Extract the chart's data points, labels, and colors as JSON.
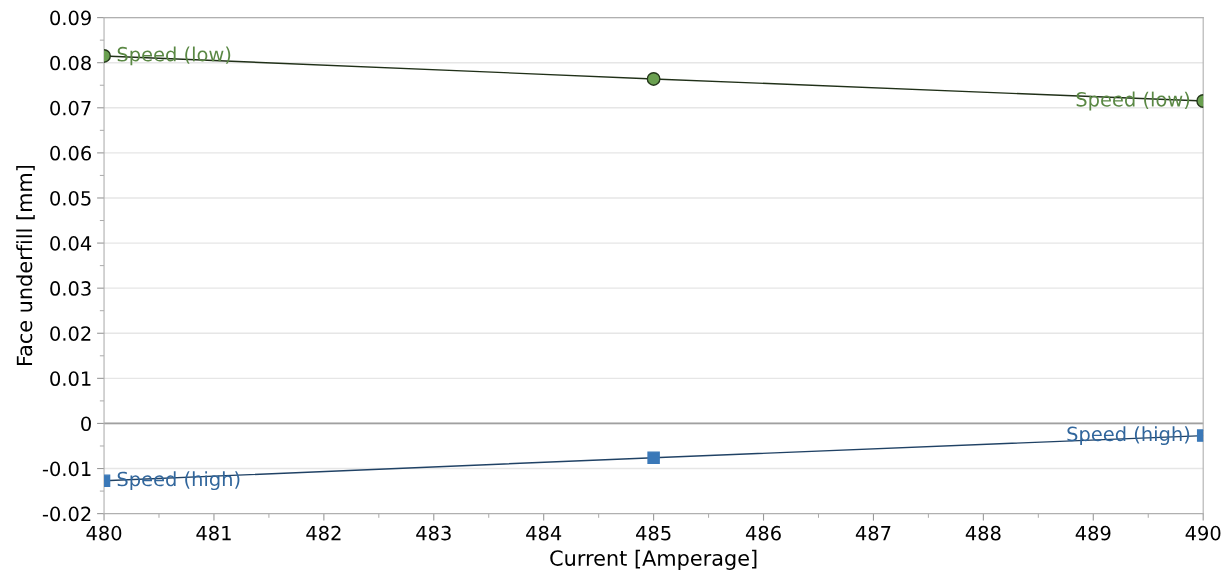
{
  "chart_data": {
    "type": "line",
    "xlabel": "Current [Amperage]",
    "ylabel": "Face underfill [mm]",
    "x": [
      480,
      485,
      490
    ],
    "series": [
      {
        "name": "Speed (low)",
        "color": "#6aa050",
        "marker": "circle",
        "values": [
          0.0815,
          0.0764,
          0.0715
        ]
      },
      {
        "name": "Speed (high)",
        "color": "#3a78b8",
        "marker": "square",
        "values": [
          -0.0127,
          -0.0076,
          -0.0027
        ]
      }
    ],
    "xlim": [
      480,
      490
    ],
    "xticks": [
      480,
      481,
      482,
      483,
      484,
      485,
      486,
      487,
      488,
      489,
      490
    ],
    "ylim": [
      -0.02,
      0.09
    ],
    "yticks": [
      -0.02,
      -0.01,
      0,
      0.01,
      0.02,
      0.03,
      0.04,
      0.05,
      0.06,
      0.07,
      0.08,
      0.09
    ],
    "ref_lines": [
      {
        "axis": "y",
        "value": 0,
        "color": "#a0a0a0"
      }
    ],
    "grid": "y",
    "legend": false,
    "line_style": "solid"
  }
}
